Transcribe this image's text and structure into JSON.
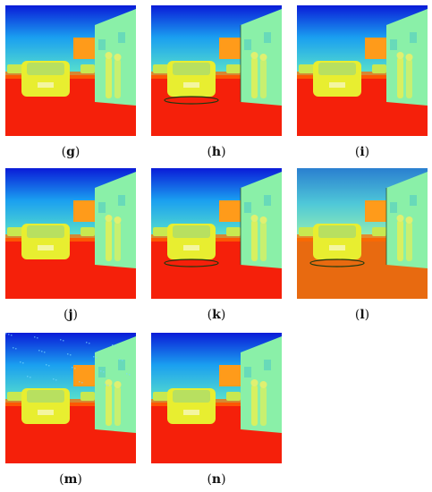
{
  "panels": [
    {
      "label": "g",
      "variant": "base"
    },
    {
      "label": "h",
      "variant": "edges"
    },
    {
      "label": "i",
      "variant": "base"
    },
    {
      "label": "j",
      "variant": "smooth"
    },
    {
      "label": "k",
      "variant": "edges"
    },
    {
      "label": "l",
      "variant": "washed"
    },
    {
      "label": "m",
      "variant": "noisy"
    },
    {
      "label": "n",
      "variant": "base"
    }
  ],
  "colors": {
    "sky_top": "#0a1bd8",
    "sky_mid": "#1a9ff0",
    "horizon": "#5fe8c8",
    "ground": "#f5200a",
    "ground_far": "#ff6a00",
    "car": "#e8ee30",
    "building": "#8af0a8",
    "orange_sign": "#ff9b1a"
  }
}
